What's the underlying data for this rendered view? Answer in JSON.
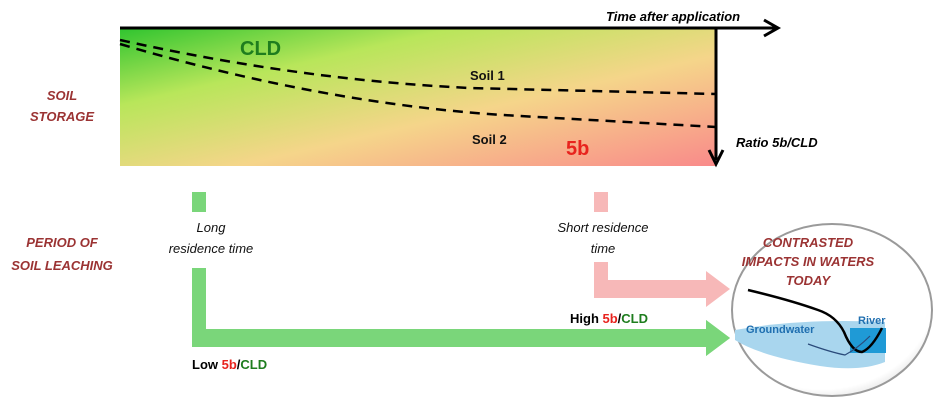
{
  "labels": {
    "time_axis": "Time after application",
    "ratio_axis": "Ratio 5b/CLD",
    "cld": "CLD",
    "fiveb": "5b",
    "soil1": "Soil 1",
    "soil2": "Soil 2",
    "soil_storage_line1": "SOIL",
    "soil_storage_line2": "STORAGE",
    "period_line1": "PERIOD OF",
    "period_line2": "SOIL LEACHING",
    "long_line1": "Long",
    "long_line2": "residence time",
    "short_line1": "Short residence",
    "short_line2": "time",
    "high_word": "High ",
    "low_word": "Low ",
    "ratio_5b": "5b",
    "ratio_slash": "/",
    "ratio_cld": "CLD",
    "contrasted_line1": "CONTRASTED",
    "contrasted_line2": "IMPACTS IN WATERS",
    "contrasted_line3": "TODAY",
    "groundwater": "Groundwater",
    "river": "River"
  },
  "colors": {
    "green": "#7ad67a",
    "pink": "#f7b8b8",
    "dark_red": "#9b3333",
    "red": "#e8231e",
    "dark_green": "#1e7d1e",
    "groundwater": "#a9d6ee",
    "river": "#1f9ad6"
  }
}
